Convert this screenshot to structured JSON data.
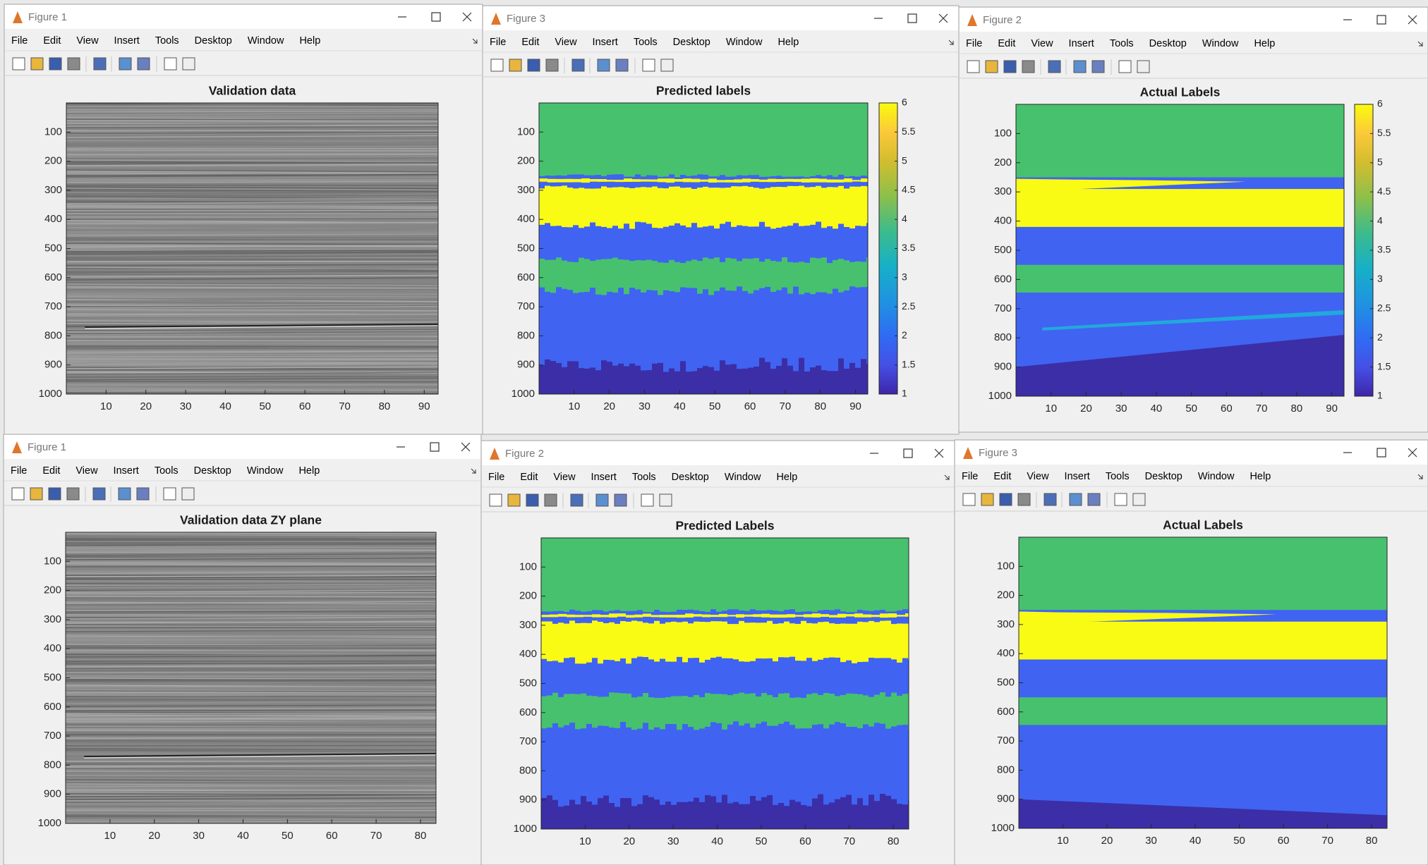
{
  "windows": [
    {
      "title": "Figure 1",
      "menu": [
        "File",
        "Edit",
        "View",
        "Insert",
        "Tools",
        "Desktop",
        "Window",
        "Help"
      ],
      "axes_title": "Validation data",
      "xticks": [
        10,
        20,
        30,
        40,
        50,
        60,
        70,
        80,
        90
      ],
      "yticks": [
        100,
        200,
        300,
        400,
        500,
        600,
        700,
        800,
        900,
        1000
      ]
    },
    {
      "title": "Figure 3",
      "menu": [
        "File",
        "Edit",
        "View",
        "Insert",
        "Tools",
        "Desktop",
        "Window",
        "Help"
      ],
      "axes_title": "Predicted labels",
      "xticks": [
        10,
        20,
        30,
        40,
        50,
        60,
        70,
        80,
        90
      ],
      "yticks": [
        100,
        200,
        300,
        400,
        500,
        600,
        700,
        800,
        900,
        1000
      ],
      "colorbar_ticks": [
        1,
        1.5,
        2,
        2.5,
        3,
        3.5,
        4,
        4.5,
        5,
        5.5,
        6
      ]
    },
    {
      "title": "Figure 2",
      "menu": [
        "File",
        "Edit",
        "View",
        "Insert",
        "Tools",
        "Desktop",
        "Window",
        "Help"
      ],
      "axes_title": "Actual Labels",
      "xticks": [
        10,
        20,
        30,
        40,
        50,
        60,
        70,
        80,
        90
      ],
      "yticks": [
        100,
        200,
        300,
        400,
        500,
        600,
        700,
        800,
        900,
        1000
      ],
      "colorbar_ticks": [
        1,
        1.5,
        2,
        2.5,
        3,
        3.5,
        4,
        4.5,
        5,
        5.5,
        6
      ]
    },
    {
      "title": "Figure 1",
      "menu": [
        "File",
        "Edit",
        "View",
        "Insert",
        "Tools",
        "Desktop",
        "Window",
        "Help"
      ],
      "axes_title": "Validation data ZY plane",
      "xticks": [
        10,
        20,
        30,
        40,
        50,
        60,
        70,
        80
      ],
      "yticks": [
        100,
        200,
        300,
        400,
        500,
        600,
        700,
        800,
        900,
        1000
      ]
    },
    {
      "title": "Figure 2",
      "menu": [
        "File",
        "Edit",
        "View",
        "Insert",
        "Tools",
        "Desktop",
        "Window",
        "Help"
      ],
      "axes_title": "Predicted Labels",
      "xticks": [
        10,
        20,
        30,
        40,
        50,
        60,
        70,
        80
      ],
      "yticks": [
        100,
        200,
        300,
        400,
        500,
        600,
        700,
        800,
        900,
        1000
      ]
    },
    {
      "title": "Figure 3",
      "menu": [
        "File",
        "Edit",
        "View",
        "Insert",
        "Tools",
        "Desktop",
        "Window",
        "Help"
      ],
      "axes_title": "Actual Labels",
      "xticks": [
        10,
        20,
        30,
        40,
        50,
        60,
        70,
        80
      ],
      "yticks": [
        100,
        200,
        300,
        400,
        500,
        600,
        700,
        800,
        900,
        1000
      ]
    }
  ]
}
